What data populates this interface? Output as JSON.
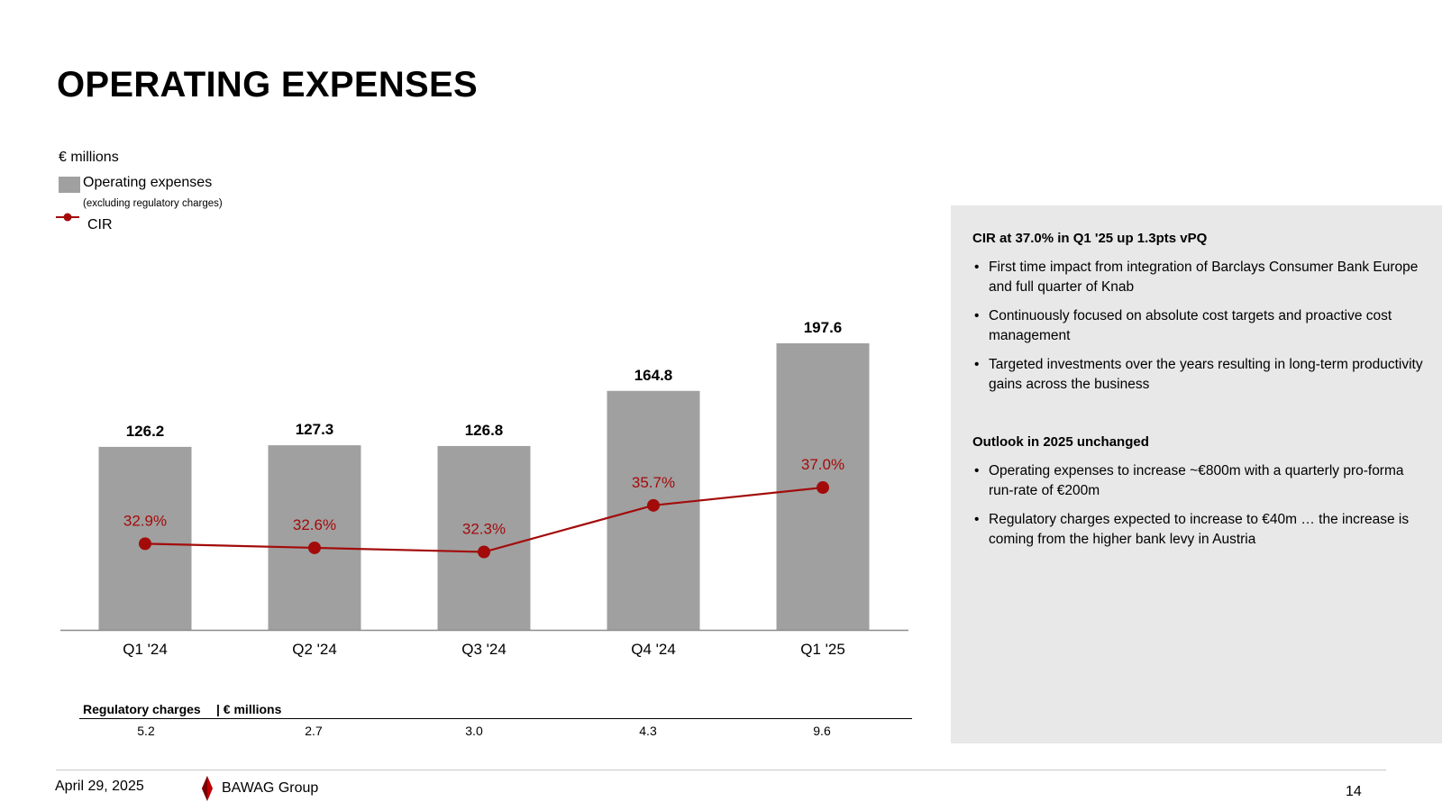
{
  "page": {
    "title": "OPERATING EXPENSES",
    "unit": "€ millions",
    "date": "April 29, 2025",
    "brand": "BAWAG Group",
    "page_number": "14"
  },
  "legend": {
    "bar_label": "Operating expenses",
    "bar_sublabel": "(excluding regulatory charges)",
    "line_label": "CIR"
  },
  "colors": {
    "bar": "#a0a0a0",
    "line": "#a30b0b",
    "panel": "#e8e8e8"
  },
  "chart_data": {
    "type": "bar",
    "categories": [
      "Q1 '24",
      "Q2 '24",
      "Q3 '24",
      "Q4 '24",
      "Q1 '25"
    ],
    "series": [
      {
        "name": "Operating expenses",
        "type": "bar",
        "values": [
          126.2,
          127.3,
          126.8,
          164.8,
          197.6
        ],
        "labels": [
          "126.2",
          "127.3",
          "126.8",
          "164.8",
          "197.6"
        ]
      },
      {
        "name": "CIR",
        "type": "line",
        "values": [
          32.9,
          32.6,
          32.3,
          35.7,
          37.0
        ],
        "labels": [
          "32.9%",
          "32.6%",
          "32.3%",
          "35.7%",
          "37.0%"
        ]
      }
    ],
    "title": "",
    "xlabel": "",
    "ylabel": "",
    "ylim": [
      0,
      210
    ],
    "cir_range": [
      20,
      40
    ],
    "grid": false,
    "legend_position": "top-left"
  },
  "regulatory": {
    "title": "Regulatory charges",
    "unit": "| € millions",
    "values": [
      "5.2",
      "2.7",
      "3.0",
      "4.3",
      "9.6"
    ]
  },
  "panel": {
    "heading1": "CIR at 37.0% in Q1 '25 up 1.3pts vPQ",
    "bullets1": [
      "First time impact from integration of Barclays Consumer Bank Europe and full quarter of Knab",
      "Continuously focused on absolute cost targets and proactive cost management",
      "Targeted investments over the years resulting in long-term productivity gains across the business"
    ],
    "heading2": "Outlook in 2025 unchanged",
    "bullets2": [
      "Operating expenses to increase ~€800m with a quarterly pro-forma run-rate of €200m",
      "Regulatory charges expected to increase to €40m … the increase is coming from the higher bank levy in Austria"
    ]
  }
}
